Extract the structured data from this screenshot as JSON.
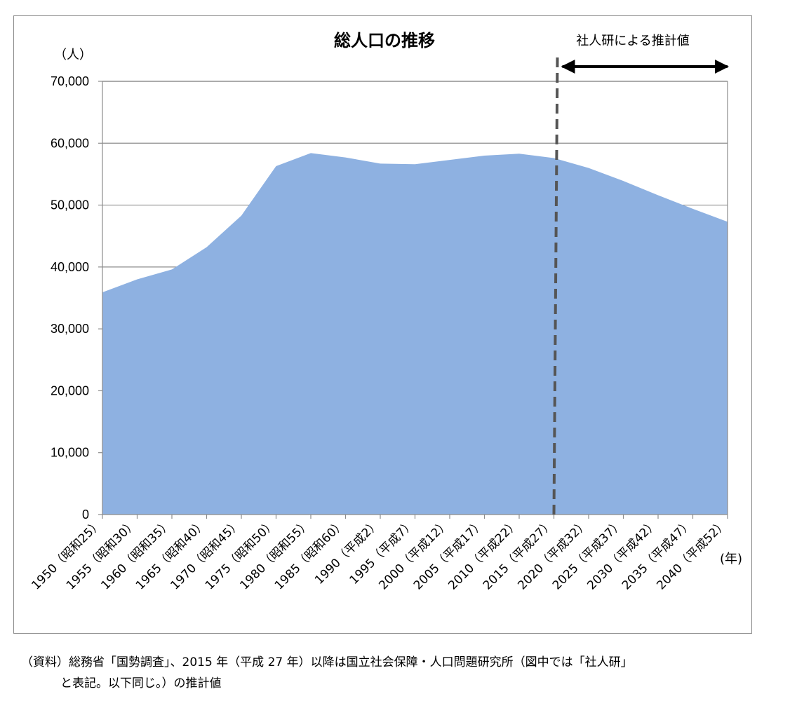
{
  "chart_data": {
    "type": "area",
    "title": "総人口の推移",
    "y_unit_label": "（人）",
    "x_unit_label": "(年)",
    "ylim": [
      0,
      70000
    ],
    "y_ticks": [
      "0",
      "10,000",
      "20,000",
      "30,000",
      "40,000",
      "50,000",
      "60,000",
      "70,000"
    ],
    "y_tick_values": [
      0,
      10000,
      20000,
      30000,
      40000,
      50000,
      60000,
      70000
    ],
    "categories": [
      "1950（昭和25）",
      "1955（昭和30）",
      "1960（昭和35）",
      "1965（昭和40）",
      "1970（昭和45）",
      "1975（昭和50）",
      "1980（昭和55）",
      "1985（昭和60）",
      "1990（平成2）",
      "1995（平成7）",
      "2000（平成12）",
      "2005（平成17）",
      "2010（平成22）",
      "2015（平成27）",
      "2020（平成32）",
      "2025（平成37）",
      "2030（平成42）",
      "2035（平成47）",
      "2040（平成52）"
    ],
    "values": [
      35900,
      38000,
      39600,
      43200,
      48300,
      56300,
      58400,
      57700,
      56700,
      56600,
      57300,
      58000,
      58300,
      57600,
      56000,
      53900,
      51600,
      49400,
      47300
    ],
    "color": "#8eb1e1",
    "grid": true,
    "legend": "none",
    "annotation": {
      "text": "社人研による推計値",
      "divider_category": "2015（平成27）",
      "divider_style": "dashed",
      "divider_color": "#555555"
    }
  },
  "footnote": {
    "line1": "（資料）総務省「国勢調査」、2015 年（平成 27 年）以降は国立社会保障・人口問題研究所（図中では「社人研」",
    "line2": "と表記。以下同じ。）の推計値"
  }
}
